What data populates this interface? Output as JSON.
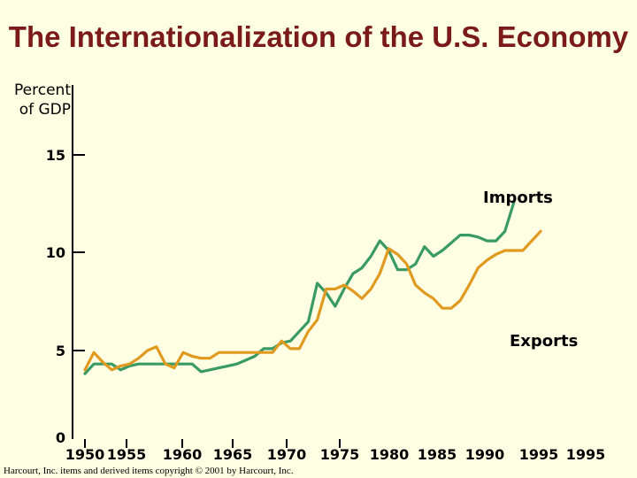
{
  "chart_data": {
    "type": "line",
    "title": "The Internationalization of the U.S. Economy",
    "ylabel": "Percent of GDP",
    "xlabel": "",
    "ylim": [
      0,
      15
    ],
    "yticks": [
      "15",
      "10",
      "5",
      "0"
    ],
    "xticks": [
      "1950",
      "1955",
      "1960",
      "1965",
      "1970",
      "1975",
      "1980",
      "1985",
      "1990",
      "1995",
      "1995"
    ],
    "series": [
      {
        "name": "Imports",
        "color": "#3a9a64",
        "points": [
          [
            1950,
            3.4
          ],
          [
            1951,
            3.9
          ],
          [
            1952,
            3.9
          ],
          [
            1953,
            3.9
          ],
          [
            1954,
            3.6
          ],
          [
            1955,
            3.8
          ],
          [
            1956,
            3.9
          ],
          [
            1957,
            3.9
          ],
          [
            1958,
            3.9
          ],
          [
            1959,
            3.9
          ],
          [
            1960,
            3.9
          ],
          [
            1961,
            3.9
          ],
          [
            1962,
            3.9
          ],
          [
            1963,
            3.5
          ],
          [
            1964,
            3.6
          ],
          [
            1965,
            3.7
          ],
          [
            1966,
            3.8
          ],
          [
            1967,
            3.9
          ],
          [
            1968,
            4.1
          ],
          [
            1969,
            4.3
          ],
          [
            1970,
            4.7
          ],
          [
            1971,
            4.7
          ],
          [
            1972,
            5.0
          ],
          [
            1973,
            5.1
          ],
          [
            1974,
            5.6
          ],
          [
            1975,
            6.1
          ],
          [
            1976,
            8.1
          ],
          [
            1977,
            7.6
          ],
          [
            1978,
            6.9
          ],
          [
            1979,
            7.8
          ],
          [
            1980,
            8.6
          ],
          [
            1981,
            8.9
          ],
          [
            1982,
            9.5
          ],
          [
            1983,
            10.3
          ],
          [
            1984,
            9.8
          ],
          [
            1985,
            8.8
          ],
          [
            1986,
            8.8
          ],
          [
            1987,
            9.1
          ],
          [
            1988,
            10.0
          ],
          [
            1989,
            9.5
          ],
          [
            1990,
            9.8
          ],
          [
            1991,
            10.2
          ],
          [
            1992,
            10.6
          ],
          [
            1993,
            10.6
          ],
          [
            1994,
            10.5
          ],
          [
            1995,
            10.3
          ],
          [
            1996,
            10.3
          ],
          [
            1997,
            10.8
          ],
          [
            1998,
            12.3
          ]
        ]
      },
      {
        "name": "Exports",
        "color": "#e09a20",
        "points": [
          [
            1950,
            3.6
          ],
          [
            1951,
            4.5
          ],
          [
            1952,
            4.0
          ],
          [
            1953,
            3.6
          ],
          [
            1954,
            3.8
          ],
          [
            1955,
            3.9
          ],
          [
            1956,
            4.2
          ],
          [
            1957,
            4.6
          ],
          [
            1958,
            4.8
          ],
          [
            1959,
            3.9
          ],
          [
            1960,
            3.7
          ],
          [
            1961,
            4.5
          ],
          [
            1962,
            4.3
          ],
          [
            1963,
            4.2
          ],
          [
            1964,
            4.2
          ],
          [
            1965,
            4.5
          ],
          [
            1966,
            4.5
          ],
          [
            1967,
            4.5
          ],
          [
            1968,
            4.5
          ],
          [
            1969,
            4.5
          ],
          [
            1970,
            4.5
          ],
          [
            1971,
            4.5
          ],
          [
            1972,
            5.1
          ],
          [
            1973,
            4.7
          ],
          [
            1974,
            4.7
          ],
          [
            1975,
            5.6
          ],
          [
            1976,
            6.2
          ],
          [
            1977,
            7.8
          ],
          [
            1978,
            7.8
          ],
          [
            1979,
            8.0
          ],
          [
            1980,
            7.7
          ],
          [
            1981,
            7.3
          ],
          [
            1982,
            7.8
          ],
          [
            1983,
            8.6
          ],
          [
            1984,
            9.9
          ],
          [
            1985,
            9.6
          ],
          [
            1986,
            9.1
          ],
          [
            1987,
            8.0
          ],
          [
            1988,
            7.6
          ],
          [
            1989,
            7.3
          ],
          [
            1990,
            6.8
          ],
          [
            1991,
            6.8
          ],
          [
            1992,
            7.2
          ],
          [
            1993,
            8.0
          ],
          [
            1994,
            8.9
          ],
          [
            1995,
            9.3
          ],
          [
            1996,
            9.6
          ],
          [
            1997,
            9.8
          ],
          [
            1998,
            9.8
          ],
          [
            1999,
            9.8
          ],
          [
            2000,
            10.3
          ],
          [
            2001,
            10.8
          ]
        ]
      }
    ],
    "grid": false,
    "legend": "inline labels"
  },
  "footer": {
    "copyright": "Harcourt, Inc. items and derived items copyright © 2001 by Harcourt, Inc."
  }
}
